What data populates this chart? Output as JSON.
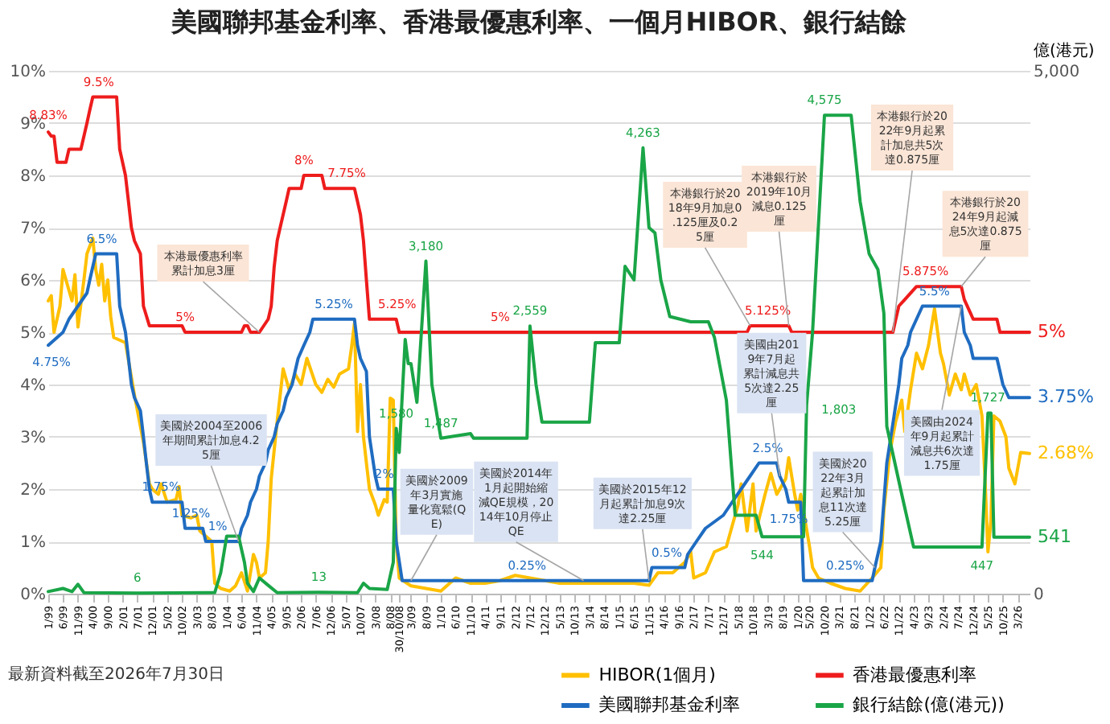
{
  "chart_data": {
    "type": "line",
    "title": "美國聯邦基金利率、香港最優惠利率、一個月HIBOR、銀行結餘",
    "xlim": [
      "1999-01",
      "2026-07"
    ],
    "xticks": [
      {
        "value": "1999-01",
        "label": "1/99"
      },
      {
        "value": "1999-06",
        "label": "6/99"
      },
      {
        "value": "1999-11",
        "label": "11/99"
      },
      {
        "value": "2000-04",
        "label": "4/00"
      },
      {
        "value": "2000-09",
        "label": "9/00"
      },
      {
        "value": "2001-02",
        "label": "2/01"
      },
      {
        "value": "2001-07",
        "label": "7/01"
      },
      {
        "value": "2001-12",
        "label": "12/01"
      },
      {
        "value": "2002-05",
        "label": "5/02"
      },
      {
        "value": "2002-10",
        "label": "10/02"
      },
      {
        "value": "2003-03",
        "label": "3/03"
      },
      {
        "value": "2003-08",
        "label": "8/03"
      },
      {
        "value": "2004-01",
        "label": "1/04"
      },
      {
        "value": "2004-06",
        "label": "6/04"
      },
      {
        "value": "2004-11",
        "label": "11/04"
      },
      {
        "value": "2005-04",
        "label": "4/05"
      },
      {
        "value": "2005-09",
        "label": "9/05"
      },
      {
        "value": "2006-02",
        "label": "2/06"
      },
      {
        "value": "2006-07",
        "label": "7/06"
      },
      {
        "value": "2006-12",
        "label": "12/06"
      },
      {
        "value": "2007-05",
        "label": "5/07"
      },
      {
        "value": "2007-10",
        "label": "10/07"
      },
      {
        "value": "2008-03",
        "label": "3/08"
      },
      {
        "value": "2008-08",
        "label": "8/08"
      },
      {
        "value": "2008-10-30",
        "label": "30/10/08"
      },
      {
        "value": "2009-03",
        "label": "3/09"
      },
      {
        "value": "2009-08",
        "label": "8/09"
      },
      {
        "value": "2010-01",
        "label": "1/10"
      },
      {
        "value": "2010-06",
        "label": "6/10"
      },
      {
        "value": "2010-11",
        "label": "11/10"
      },
      {
        "value": "2011-04",
        "label": "4/11"
      },
      {
        "value": "2011-09",
        "label": "9/11"
      },
      {
        "value": "2012-02",
        "label": "2/12"
      },
      {
        "value": "2012-07",
        "label": "7/12"
      },
      {
        "value": "2012-12",
        "label": "12/12"
      },
      {
        "value": "2013-05",
        "label": "5/13"
      },
      {
        "value": "2013-10",
        "label": "10/13"
      },
      {
        "value": "2014-03",
        "label": "3/14"
      },
      {
        "value": "2014-08",
        "label": "8/14"
      },
      {
        "value": "2015-01",
        "label": "1/15"
      },
      {
        "value": "2015-06",
        "label": "6/15"
      },
      {
        "value": "2015-11",
        "label": "11/15"
      },
      {
        "value": "2016-04",
        "label": "4/16"
      },
      {
        "value": "2016-09",
        "label": "9/16"
      },
      {
        "value": "2017-02",
        "label": "2/17"
      },
      {
        "value": "2017-07",
        "label": "7/17"
      },
      {
        "value": "2017-12",
        "label": "12/17"
      },
      {
        "value": "2018-05",
        "label": "5/18"
      },
      {
        "value": "2018-10",
        "label": "10/18"
      },
      {
        "value": "2019-03",
        "label": "3/19"
      },
      {
        "value": "2019-08",
        "label": "8/19"
      },
      {
        "value": "2020-01",
        "label": "1/20"
      },
      {
        "value": "2020-05",
        "label": "5/20"
      },
      {
        "value": "2020-10",
        "label": "10/20"
      },
      {
        "value": "2021-03",
        "label": "3/21"
      },
      {
        "value": "2021-08",
        "label": "8/21"
      },
      {
        "value": "2022-01",
        "label": "1/22"
      },
      {
        "value": "2022-06",
        "label": "6/22"
      },
      {
        "value": "2022-11",
        "label": "11/22"
      },
      {
        "value": "2023-04",
        "label": "4/23"
      },
      {
        "value": "2023-09",
        "label": "9/23"
      },
      {
        "value": "2024-02",
        "label": "2/24"
      },
      {
        "value": "2024-07",
        "label": "7/24"
      },
      {
        "value": "2024-12",
        "label": "12/24"
      },
      {
        "value": "2025-05",
        "label": "5/25"
      },
      {
        "value": "2025-10",
        "label": "10/25"
      },
      {
        "value": "2026-03",
        "label": "3/26"
      }
    ],
    "ylim": [
      0,
      10
    ],
    "yticks": [
      {
        "value": 0,
        "label": "0%"
      },
      {
        "value": 1,
        "label": "1%"
      },
      {
        "value": 2,
        "label": "2%"
      },
      {
        "value": 3,
        "label": "3%"
      },
      {
        "value": 4,
        "label": "4%"
      },
      {
        "value": 5,
        "label": "5%"
      },
      {
        "value": 6,
        "label": "6%"
      },
      {
        "value": 7,
        "label": "7%"
      },
      {
        "value": 8,
        "label": "8%"
      },
      {
        "value": 9,
        "label": "9%"
      },
      {
        "value": 10,
        "label": "10%"
      }
    ],
    "y2lim": [
      0,
      5000
    ],
    "y2ticks": [
      0,
      {
        "value": 5000,
        "label": "5,000"
      }
    ],
    "y2label": "億(港元)",
    "grid": "y",
    "legend": "bottom",
    "series": [
      {
        "name": "HIBOR(1個月)",
        "color": "#ffc000",
        "x": [
          "1999-01",
          "1999-02",
          "1999-03",
          "1999-05",
          "1999-06",
          "1999-08",
          "1999-09",
          "1999-10",
          "1999-11",
          "2000-01",
          "2000-02",
          "2000-04",
          "2000-05",
          "2000-06",
          "2000-07",
          "2000-08",
          "2000-09",
          "2000-10",
          "2000-11",
          "2001-03",
          "2001-06",
          "2001-09",
          "2001-11",
          "2001-12",
          "2002-02",
          "2002-03",
          "2002-05",
          "2002-08",
          "2002-09",
          "2002-10",
          "2003-01",
          "2003-03",
          "2003-04",
          "2003-06",
          "2003-08",
          "2003-09",
          "2003-11",
          "2004-02",
          "2004-04",
          "2004-06",
          "2004-08",
          "2004-10",
          "2004-11",
          "2004-12",
          "2005-02",
          "2005-03",
          "2005-04",
          "2005-06",
          "2005-08",
          "2005-10",
          "2005-12",
          "2006-02",
          "2006-04",
          "2006-07",
          "2006-09",
          "2006-11",
          "2007-01",
          "2007-03",
          "2007-06",
          "2007-07",
          "2007-08",
          "2007-09",
          "2007-10",
          "2007-11",
          "2007-12",
          "2008-01",
          "2008-03",
          "2008-04",
          "2008-06",
          "2008-07",
          "2008-08",
          "2008-09",
          "2008-10",
          "2008-11",
          "2009-03",
          "2009-08",
          "2010-01",
          "2010-06",
          "2010-11",
          "2011-04",
          "2011-09",
          "2012-02",
          "2012-07",
          "2012-12",
          "2013-05",
          "2013-10",
          "2014-03",
          "2014-08",
          "2015-01",
          "2015-06",
          "2015-11",
          "2016-02",
          "2016-07",
          "2016-11",
          "2017-01",
          "2017-02",
          "2017-06",
          "2017-09",
          "2018-01",
          "2018-05",
          "2018-06",
          "2018-08",
          "2018-10",
          "2018-11",
          "2019-02",
          "2019-04",
          "2019-06",
          "2019-09",
          "2019-10",
          "2019-12",
          "2020-01",
          "2020-02",
          "2020-05",
          "2020-06",
          "2020-08",
          "2020-12",
          "2021-05",
          "2021-10",
          "2022-02",
          "2022-05",
          "2022-06",
          "2022-08",
          "2022-10",
          "2022-12",
          "2023-01",
          "2023-03",
          "2023-05",
          "2023-07",
          "2023-09",
          "2023-11",
          "2024-01",
          "2024-02",
          "2024-04",
          "2024-06",
          "2024-08",
          "2024-09",
          "2024-11",
          "2025-01",
          "2025-03",
          "2025-04",
          "2025-05",
          "2025-06",
          "2025-07",
          "2025-09",
          "2025-11",
          "2025-12",
          "2026-02",
          "2026-04",
          "2026-07"
        ],
        "values": [
          5.6,
          5.7,
          5.0,
          5.5,
          6.2,
          5.8,
          5.6,
          6.1,
          5.1,
          6.0,
          6.5,
          6.8,
          6.2,
          5.9,
          6.3,
          5.6,
          6.0,
          5.3,
          4.9,
          4.8,
          3.8,
          2.9,
          2.1,
          2.0,
          1.9,
          2.1,
          1.75,
          1.8,
          2.05,
          1.5,
          1.45,
          1.5,
          1.2,
          1.1,
          1.0,
          0.2,
          0.1,
          0.05,
          0.15,
          0.4,
          0.05,
          0.75,
          0.6,
          0.3,
          0.4,
          1.0,
          2.2,
          3.3,
          4.3,
          3.9,
          4.2,
          4.0,
          4.5,
          4.0,
          3.85,
          4.1,
          3.95,
          4.2,
          4.3,
          4.7,
          5.17,
          3.1,
          4.0,
          3.0,
          2.5,
          2.0,
          1.7,
          1.5,
          1.8,
          1.75,
          3.74,
          3.7,
          1.0,
          0.3,
          0.15,
          0.1,
          0.05,
          0.3,
          0.2,
          0.2,
          0.25,
          0.35,
          0.3,
          0.25,
          0.2,
          0.2,
          0.2,
          0.2,
          0.2,
          0.2,
          0.16,
          0.4,
          0.4,
          0.6,
          0.8,
          0.3,
          0.4,
          0.8,
          0.9,
          1.7,
          2.1,
          1.2,
          2.1,
          1.2,
          1.9,
          2.3,
          1.9,
          2.2,
          2.6,
          1.9,
          1.6,
          1.9,
          0.9,
          0.5,
          0.3,
          0.2,
          0.1,
          0.05,
          0.3,
          0.5,
          1.6,
          2.7,
          3.3,
          3.7,
          3.1,
          3.9,
          4.6,
          4.3,
          4.75,
          5.45,
          4.6,
          4.4,
          3.8,
          4.2,
          3.9,
          4.2,
          3.8,
          4.0,
          3.4,
          2.2,
          0.8,
          1.4,
          3.4,
          3.3,
          3.0,
          2.4,
          2.1,
          2.7,
          2.68
        ],
        "value_labels": [
          null,
          null,
          null,
          null,
          null,
          null,
          null,
          null,
          null,
          null,
          null,
          null,
          null,
          null,
          null,
          null,
          null,
          null,
          null,
          null,
          null,
          null,
          null,
          null,
          null,
          null,
          null,
          null,
          null,
          null,
          null,
          null,
          null,
          null,
          null,
          null,
          null,
          null,
          null,
          null,
          null,
          null,
          null,
          null,
          null,
          null,
          null,
          null,
          null,
          null,
          null,
          null,
          null,
          null,
          null,
          null,
          null,
          null,
          null,
          null,
          null,
          null,
          null,
          null,
          null,
          null,
          null,
          null,
          null,
          null,
          null,
          null,
          null,
          null,
          null,
          null,
          null,
          null,
          null,
          null,
          null,
          null,
          null,
          null,
          null,
          null,
          null,
          null,
          null,
          null,
          null,
          null,
          null,
          null,
          null,
          null,
          null,
          null,
          null,
          null,
          null,
          null,
          null,
          null,
          null,
          null,
          null,
          null,
          null,
          null,
          null,
          null,
          null,
          null,
          null,
          null,
          null,
          null,
          null,
          null,
          null,
          null,
          null,
          null,
          null,
          null,
          null,
          null,
          null,
          null,
          null,
          null,
          null,
          null,
          null,
          null,
          null,
          null,
          null,
          null,
          null,
          null,
          null,
          null,
          null,
          null,
          null,
          null,
          "2.68%"
        ]
      },
      {
        "name": "美國聯邦基金利率",
        "color": "#1f6cc1",
        "x": [
          "1999-01",
          "1999-06",
          "1999-08",
          "1999-11",
          "2000-02",
          "2000-03",
          "2000-05",
          "2000-07",
          "2000-12",
          "2001-01",
          "2001-03",
          "2001-04",
          "2001-05",
          "2001-06",
          "2001-08",
          "2001-09",
          "2001-10",
          "2001-11",
          "2001-12",
          "2002-03",
          "2002-10",
          "2002-11",
          "2003-01",
          "2003-05",
          "2003-06",
          "2003-10",
          "2004-05",
          "2004-06",
          "2004-08",
          "2004-09",
          "2004-11",
          "2004-12",
          "2005-02",
          "2005-03",
          "2005-05",
          "2005-06",
          "2005-08",
          "2005-09",
          "2005-11",
          "2005-12",
          "2006-01",
          "2006-03",
          "2006-05",
          "2006-06",
          "2007-01",
          "2007-08",
          "2007-09",
          "2007-10",
          "2007-12",
          "2008-01",
          "2008-03",
          "2008-04",
          "2008-06",
          "2008-09",
          "2008-10",
          "2008-12",
          "2012-06",
          "2015-11",
          "2015-12",
          "2016-05",
          "2016-11",
          "2016-12",
          "2017-03",
          "2017-06",
          "2017-12",
          "2018-03",
          "2018-06",
          "2018-09",
          "2018-12",
          "2019-03",
          "2019-06",
          "2019-07",
          "2019-09",
          "2019-10",
          "2020-02",
          "2020-03",
          "2021-05",
          "2022-02",
          "2022-03",
          "2022-05",
          "2022-06",
          "2022-07",
          "2022-09",
          "2022-11",
          "2022-12",
          "2023-02",
          "2023-03",
          "2023-05",
          "2023-07",
          "2023-11",
          "2024-08",
          "2024-09",
          "2024-11",
          "2024-12",
          "2025-08",
          "2025-09",
          "2025-10",
          "2025-12",
          "2026-07"
        ],
        "values": [
          4.75,
          5.0,
          5.25,
          5.5,
          5.75,
          6.0,
          6.5,
          6.5,
          6.5,
          5.5,
          5.0,
          4.5,
          4.0,
          3.75,
          3.5,
          3.0,
          2.5,
          2.0,
          1.75,
          1.75,
          1.75,
          1.25,
          1.25,
          1.25,
          1.0,
          1.0,
          1.0,
          1.25,
          1.5,
          1.75,
          2.0,
          2.25,
          2.5,
          2.75,
          3.0,
          3.25,
          3.5,
          3.75,
          4.0,
          4.25,
          4.5,
          4.75,
          5.0,
          5.25,
          5.25,
          5.25,
          4.75,
          4.5,
          4.25,
          3.0,
          2.25,
          2.0,
          2.0,
          2.0,
          1.0,
          0.25,
          0.25,
          0.25,
          0.5,
          0.5,
          0.5,
          0.75,
          1.0,
          1.25,
          1.5,
          1.75,
          2.0,
          2.25,
          2.5,
          2.5,
          2.5,
          2.25,
          2.0,
          1.75,
          1.75,
          0.25,
          0.25,
          0.25,
          0.5,
          1.0,
          1.75,
          2.5,
          3.25,
          4.0,
          4.5,
          4.75,
          5.0,
          5.25,
          5.5,
          5.5,
          5.5,
          5.0,
          4.75,
          4.5,
          4.5,
          4.25,
          4.0,
          3.75,
          3.75
        ],
        "value_labels": [
          "4.75%",
          null,
          null,
          null,
          null,
          null,
          null,
          "6.5%",
          null,
          null,
          null,
          null,
          null,
          null,
          null,
          null,
          null,
          null,
          null,
          "1.75%",
          null,
          null,
          "1.25%",
          null,
          null,
          "1%",
          null,
          null,
          null,
          null,
          null,
          null,
          null,
          null,
          null,
          null,
          null,
          null,
          null,
          null,
          null,
          null,
          null,
          null,
          "5.25%",
          null,
          null,
          null,
          null,
          null,
          null,
          null,
          "2%",
          null,
          null,
          null,
          "0.25%",
          null,
          null,
          "0.5%",
          null,
          null,
          null,
          null,
          null,
          null,
          null,
          null,
          null,
          "2.5%",
          null,
          null,
          null,
          "1.75%",
          null,
          null,
          "0.25%",
          null,
          null,
          null,
          null,
          null,
          null,
          null,
          null,
          null,
          null,
          null,
          null,
          "5.5%",
          null,
          null,
          null,
          null,
          null,
          null,
          null,
          null,
          "3.75%"
        ]
      },
      {
        "name": "香港最優惠利率",
        "color": "#ee1c1c",
        "x": [
          "1999-01",
          "1999-02",
          "1999-03",
          "1999-04",
          "1999-07",
          "1999-08",
          "1999-12",
          "2000-01",
          "2000-02",
          "2000-03",
          "2000-04",
          "2000-06",
          "2000-12",
          "2001-01",
          "2001-03",
          "2001-04",
          "2001-05",
          "2001-06",
          "2001-08",
          "2001-09",
          "2001-11",
          "2002-10",
          "2002-11",
          "2004-06",
          "2004-07",
          "2004-08",
          "2004-09",
          "2004-12",
          "2005-03",
          "2005-04",
          "2005-05",
          "2005-06",
          "2005-07",
          "2005-09",
          "2005-10",
          "2006-02",
          "2006-03",
          "2006-09",
          "2006-10",
          "2007-01",
          "2007-08",
          "2007-09",
          "2007-10",
          "2007-11",
          "2007-12",
          "2008-01",
          "2008-06",
          "2008-10",
          "2008-11",
          "2011-09",
          "2018-08",
          "2018-09",
          "2019-03",
          "2019-10",
          "2019-11",
          "2022-09",
          "2022-10",
          "2022-11",
          "2023-01",
          "2023-05",
          "2023-08",
          "2024-08",
          "2024-09",
          "2024-11",
          "2024-12",
          "2025-08",
          "2025-09",
          "2026-07"
        ],
        "values": [
          8.83,
          8.75,
          8.75,
          8.25,
          8.25,
          8.5,
          8.5,
          8.75,
          9.0,
          9.25,
          9.5,
          9.5,
          9.5,
          8.5,
          8.0,
          7.5,
          7.0,
          6.75,
          6.5,
          5.5,
          5.125,
          5.125,
          5.0,
          5.0,
          5.125,
          5.125,
          5.0,
          5.0,
          5.25,
          5.5,
          6.25,
          6.75,
          7.0,
          7.5,
          7.75,
          7.75,
          8.0,
          8.0,
          7.75,
          7.75,
          7.75,
          7.5,
          7.25,
          6.75,
          6.0,
          5.25,
          5.25,
          5.25,
          5.0,
          5.0,
          5.0,
          5.125,
          5.125,
          5.125,
          5.0,
          5.0,
          5.25,
          5.5,
          5.625,
          5.875,
          5.875,
          5.875,
          5.625,
          5.375,
          5.25,
          5.25,
          5.0,
          5.0
        ],
        "value_labels": [
          "8.83%",
          null,
          null,
          null,
          null,
          null,
          null,
          null,
          null,
          null,
          null,
          "9.5%",
          null,
          null,
          null,
          null,
          null,
          null,
          null,
          null,
          null,
          null,
          "5%",
          null,
          null,
          null,
          null,
          null,
          null,
          null,
          null,
          null,
          null,
          null,
          null,
          null,
          "8%",
          null,
          null,
          "7.75%",
          null,
          null,
          null,
          null,
          null,
          null,
          "5.25%",
          null,
          null,
          "5%",
          null,
          null,
          "5.125%",
          null,
          null,
          null,
          null,
          null,
          null,
          null,
          "5.875%",
          null,
          null,
          null,
          null,
          null,
          null,
          "5%"
        ]
      },
      {
        "name": "銀行結餘(億(港元))",
        "color": "#1aa547",
        "axis": "y2",
        "x": [
          "1999-01",
          "1999-06",
          "1999-09",
          "1999-11",
          "2000-01",
          "2001-07",
          "2003-09",
          "2003-11",
          "2004-01",
          "2004-05",
          "2004-07",
          "2004-08",
          "2004-10",
          "2004-12",
          "2005-03",
          "2005-06",
          "2006-08",
          "2007-09",
          "2007-11",
          "2008-01",
          "2008-07",
          "2008-09",
          "2008-10",
          "2008-11",
          "2009-01",
          "2009-02",
          "2009-03",
          "2009-05",
          "2009-08",
          "2009-10",
          "2010-01",
          "2010-11",
          "2010-12",
          "2012-06",
          "2012-07",
          "2012-09",
          "2012-11",
          "2014-03",
          "2014-05",
          "2015-01",
          "2015-03",
          "2015-06",
          "2015-09",
          "2015-11",
          "2016-01",
          "2016-03",
          "2016-06",
          "2017-01",
          "2017-07",
          "2017-09",
          "2018-01",
          "2018-04",
          "2018-11",
          "2019-01",
          "2020-03",
          "2020-04",
          "2020-06",
          "2020-10",
          "2021-07",
          "2021-10",
          "2022-01",
          "2022-04",
          "2022-06",
          "2022-07",
          "2022-12",
          "2023-04",
          "2025-03",
          "2025-05",
          "2025-06",
          "2025-07",
          "2026-07"
        ],
        "values": [
          20,
          50,
          20,
          90,
          10,
          6,
          10,
          200,
          550,
          550,
          300,
          100,
          20,
          150,
          80,
          10,
          13,
          10,
          100,
          50,
          40,
          300,
          1580,
          1350,
          2430,
          2200,
          2200,
          1830,
          3180,
          2000,
          1487,
          1530,
          1487,
          1487,
          2559,
          2000,
          1640,
          1640,
          2400,
          2400,
          3130,
          3000,
          4263,
          3500,
          3450,
          3000,
          2650,
          2600,
          2600,
          2450,
          1850,
          750,
          750,
          544,
          544,
          1803,
          2500,
          4575,
          4575,
          3750,
          3250,
          3100,
          2680,
          1600,
          950,
          447,
          447,
          1727,
          1727,
          541,
          541
        ],
        "value_labels": [
          null,
          null,
          null,
          null,
          null,
          "6",
          null,
          null,
          null,
          null,
          null,
          null,
          null,
          null,
          null,
          null,
          "13",
          null,
          null,
          null,
          null,
          null,
          "1,580",
          null,
          null,
          null,
          null,
          null,
          "3,180",
          null,
          "1,487",
          null,
          null,
          null,
          "2,559",
          null,
          null,
          null,
          null,
          null,
          null,
          null,
          "4,263",
          null,
          null,
          null,
          null,
          null,
          null,
          null,
          null,
          null,
          null,
          "544",
          null,
          "1,803",
          null,
          "4,575",
          null,
          null,
          null,
          null,
          null,
          null,
          null,
          null,
          "447",
          "1,727",
          null,
          null,
          "541"
        ]
      }
    ],
    "annotations": [
      {
        "text": "本港最優惠利率累計加息3厘",
        "x": "2004-12",
        "y": 5.0
      },
      {
        "text": "美國於2004至2006年期間累計加息4.25厘",
        "x": "2004-05",
        "y": 1.0
      },
      {
        "text": "美國於2009年3月實施量化寬鬆(QE)",
        "x": "2009-03",
        "y": 0.25
      },
      {
        "text": "美國於2014年1月起開始縮減QE規模，2014年10月停止QE",
        "x": "2014-01",
        "y": 0.25
      },
      {
        "text": "美國於2015年12月起累計加息9次達2.25厘",
        "x": "2015-11",
        "y": 0.25
      },
      {
        "text": "本港銀行於2018年9月加息0.125厘及0.25厘",
        "x": "2018-09",
        "y": 5.125
      },
      {
        "text": "本港銀行於2019年10月減息0.125厘",
        "x": "2019-10",
        "y": 5.125
      },
      {
        "text": "美國由2019年7月起累計減息共5次達2.25厘",
        "x": "2019-07",
        "y": 2.25
      },
      {
        "text": "美國於2022年3月起累計加息11次達5.25厘",
        "x": "2022-03",
        "y": 0.5
      },
      {
        "text": "本港銀行於2022年9月起累計加息共5次達0.875厘",
        "x": "2022-09",
        "y": 5.0
      },
      {
        "text": "本港銀行於2024年9月起減息5次達0.875厘",
        "x": "2024-08",
        "y": 5.875
      },
      {
        "text": "美國由2024年9月起累計減息共6次達1.75厘",
        "x": "2024-08",
        "y": 5.5
      },
      "最新資料截至2026年7月30日"
    ]
  }
}
